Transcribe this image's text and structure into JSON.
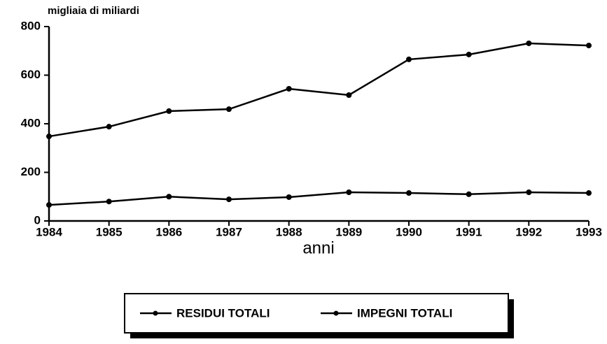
{
  "chart_data": {
    "type": "line",
    "y_axis_label": "migliaia di miliardi",
    "x_axis_label": "anni",
    "x": [
      1984,
      1985,
      1986,
      1987,
      1988,
      1989,
      1990,
      1991,
      1992,
      1993
    ],
    "xlim": [
      1984,
      1993
    ],
    "xticks": [
      1984,
      1985,
      1986,
      1987,
      1988,
      1989,
      1990,
      1991,
      1992,
      1993
    ],
    "ylim": [
      0,
      800
    ],
    "yticks": [
      0,
      200,
      400,
      600,
      800
    ],
    "grid": false,
    "legend": "bottom",
    "series": [
      {
        "name": "RESIDUI TOTALI",
        "color": "#000000",
        "values": [
          66,
          80,
          100,
          89,
          98,
          118,
          115,
          110,
          118,
          115
        ]
      },
      {
        "name": "IMPEGNI TOTALI",
        "color": "#000000",
        "values": [
          348,
          388,
          452,
          460,
          544,
          518,
          665,
          685,
          731,
          722
        ]
      }
    ]
  }
}
